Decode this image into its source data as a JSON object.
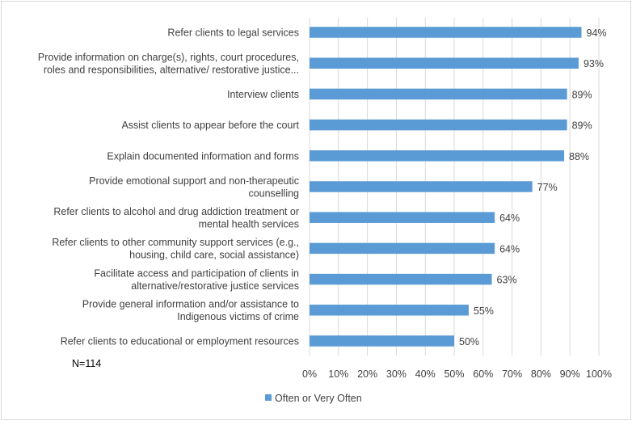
{
  "chart_data": {
    "type": "bar",
    "orientation": "horizontal",
    "categories": [
      [
        "Refer clients to legal services"
      ],
      [
        "Provide information on charge(s), rights, court procedures,",
        "roles and responsibilities, alternative/ restorative justice..."
      ],
      [
        "Interview clients"
      ],
      [
        "Assist clients to appear before the court"
      ],
      [
        "Explain documented information and forms"
      ],
      [
        "Provide emotional support and non-therapeutic",
        "counselling"
      ],
      [
        "Refer clients to alcohol and drug addiction treatment or",
        "mental health services"
      ],
      [
        "Refer clients to other community support services  (e.g.,",
        "housing, child care, social assistance)"
      ],
      [
        "Facilitate access and participation of clients in",
        "alternative/restorative justice services"
      ],
      [
        "Provide general information and/or assistance to",
        "Indigenous victims of crime"
      ],
      [
        "Refer clients to educational or employment resources"
      ]
    ],
    "series": [
      {
        "name": "Often or Very Often",
        "values": [
          94,
          93,
          89,
          89,
          88,
          77,
          64,
          64,
          63,
          55,
          50
        ],
        "data_labels": [
          "94%",
          "93%",
          "89%",
          "89%",
          "88%",
          "77%",
          "64%",
          "64%",
          "63%",
          "55%",
          "50%"
        ]
      }
    ],
    "xlim": [
      0,
      100
    ],
    "x_ticks": [
      0,
      10,
      20,
      30,
      40,
      50,
      60,
      70,
      80,
      90,
      100
    ],
    "x_tick_labels": [
      "0%",
      "10%",
      "20%",
      "30%",
      "40%",
      "50%",
      "60%",
      "70%",
      "80%",
      "90%",
      "100%"
    ],
    "title": "",
    "xlabel": "",
    "ylabel": "",
    "grid": "vertical",
    "legend": "bottom",
    "annotation": "N=114",
    "colors": {
      "bar": "#5B9BD5",
      "grid": "#D9D9D9",
      "text": "#404040",
      "border": "#D9D9D9"
    }
  }
}
